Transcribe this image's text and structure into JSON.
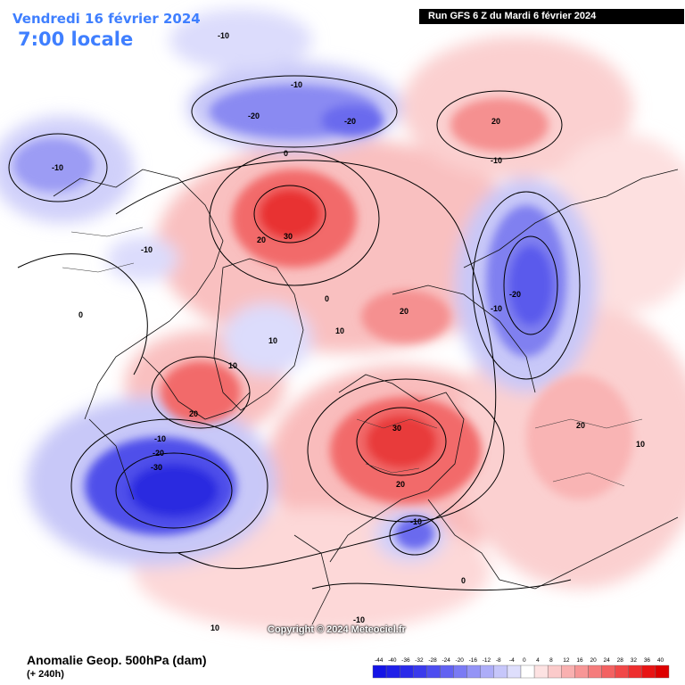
{
  "header": {
    "date": "Vendredi 16 février 2024",
    "time": "7:00 locale",
    "run": "Run GFS 6 Z du Mardi 6 février 2024"
  },
  "footer": {
    "parameter": "Anomalie Geop. 500hPa (dam)",
    "lead_time": "(+ 240h)",
    "copyright": "Copyright © 2024 Meteociel.fr"
  },
  "legend": {
    "ticks": [
      "-44",
      "-40",
      "-36",
      "-32",
      "-28",
      "-24",
      "-20",
      "-16",
      "-12",
      "-8",
      "-4",
      "0",
      "4",
      "8",
      "12",
      "16",
      "20",
      "24",
      "28",
      "32",
      "36",
      "40"
    ],
    "colors": [
      "#1414e6",
      "#1f1fe8",
      "#2a2aea",
      "#3a3aec",
      "#4d4df0",
      "#6262f2",
      "#7a7af4",
      "#9494f6",
      "#adadf8",
      "#c6c6fa",
      "#dedefc",
      "#ffffff",
      "#fde2e2",
      "#fbcaca",
      "#f9b0b0",
      "#f79696",
      "#f57c7c",
      "#f36262",
      "#f14848",
      "#ee2e2e",
      "#e81414",
      "#dd0000"
    ]
  },
  "contour_labels": [
    "-10",
    "-10",
    "-20",
    "-20",
    "-10",
    "0",
    "-10",
    "20",
    "30",
    "0",
    "10",
    "20",
    "-10",
    "-20",
    "-10",
    "20",
    "10",
    "10",
    "20",
    "-10",
    "-20",
    "-30",
    "30",
    "20",
    "-10",
    "0",
    "10",
    "-10",
    "10",
    "0",
    "20"
  ],
  "colors": {
    "positive": "#e83030",
    "negative": "#2a2ae0",
    "header_text": "#3f7fff"
  }
}
